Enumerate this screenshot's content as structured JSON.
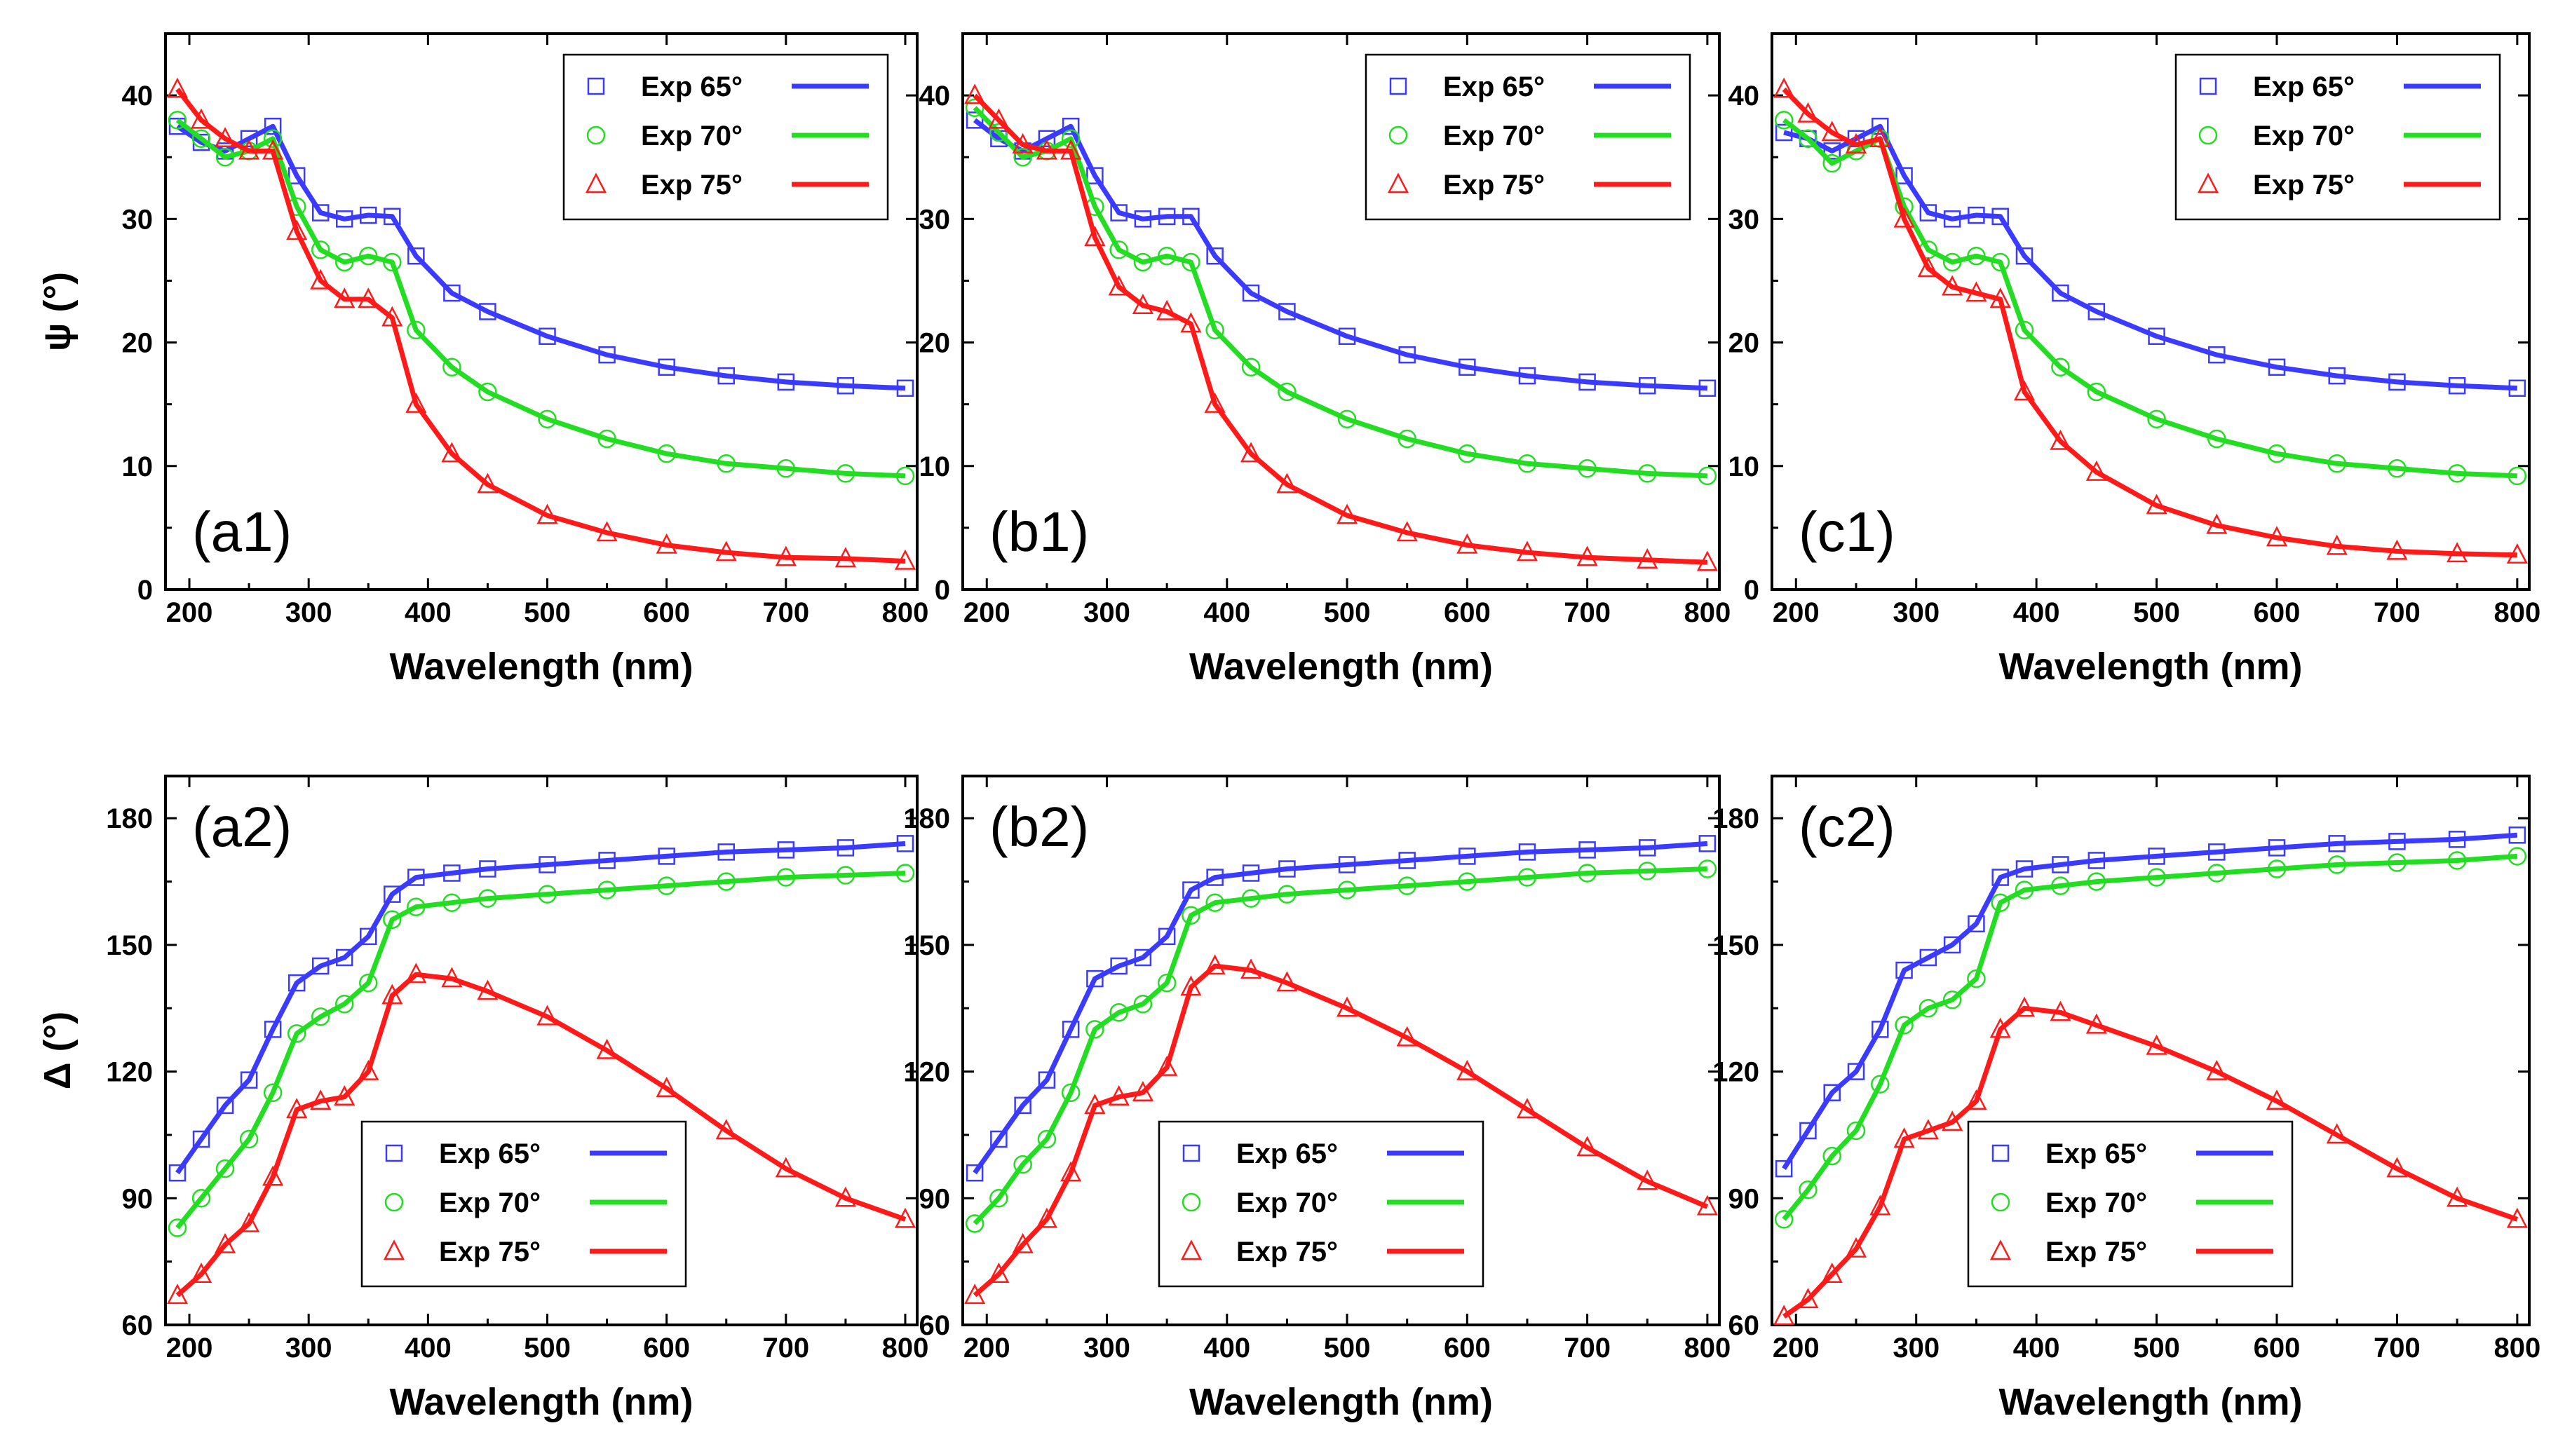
{
  "colors": {
    "exp65": "#3b3bff",
    "exp70": "#22dd22",
    "exp75": "#ff1a1a"
  },
  "chart_data": [
    {
      "type": "line",
      "panel": "(a1)",
      "xlabel": "Wavelength (nm)",
      "ylabel": "ψ (°)",
      "xlim": [
        180,
        810
      ],
      "ylim": [
        0,
        45
      ],
      "xticks": [
        200,
        300,
        400,
        500,
        600,
        700,
        800
      ],
      "yticks": [
        0,
        10,
        20,
        30,
        40
      ],
      "legend": {
        "position": "top-right",
        "entries": [
          "Exp 65°",
          "Exp 70°",
          "Exp 75°"
        ]
      },
      "series": [
        {
          "name": "Exp 65°",
          "markers": "square",
          "x": [
            190,
            210,
            230,
            250,
            270,
            290,
            310,
            330,
            350,
            370,
            390,
            420,
            450,
            500,
            550,
            600,
            650,
            700,
            750,
            800
          ],
          "y": [
            37.5,
            36.2,
            35.5,
            36.5,
            37.5,
            33.5,
            30.5,
            30.0,
            30.3,
            30.2,
            27,
            24,
            22.5,
            20.5,
            19,
            18,
            17.3,
            16.8,
            16.5,
            16.3
          ]
        },
        {
          "name": "Exp 70°",
          "markers": "circle",
          "x": [
            190,
            210,
            230,
            250,
            270,
            290,
            310,
            330,
            350,
            370,
            390,
            420,
            450,
            500,
            550,
            600,
            650,
            700,
            750,
            800
          ],
          "y": [
            38,
            36.5,
            35,
            35.5,
            36.5,
            31,
            27.5,
            26.5,
            27,
            26.5,
            21,
            18,
            16,
            13.8,
            12.2,
            11,
            10.2,
            9.8,
            9.4,
            9.2
          ]
        },
        {
          "name": "Exp 75°",
          "markers": "triangle",
          "x": [
            190,
            210,
            230,
            250,
            270,
            290,
            310,
            330,
            350,
            370,
            390,
            420,
            450,
            500,
            550,
            600,
            650,
            700,
            750,
            800
          ],
          "y": [
            40.5,
            38,
            36.5,
            35.5,
            35.5,
            29,
            25,
            23.5,
            23.5,
            22,
            15,
            11,
            8.5,
            6,
            4.6,
            3.6,
            3.0,
            2.6,
            2.5,
            2.3
          ]
        }
      ]
    },
    {
      "type": "line",
      "panel": "(b1)",
      "xlabel": "Wavelength (nm)",
      "ylabel": "",
      "xlim": [
        180,
        810
      ],
      "ylim": [
        0,
        45
      ],
      "xticks": [
        200,
        300,
        400,
        500,
        600,
        700,
        800
      ],
      "yticks": [
        0,
        10,
        20,
        30,
        40
      ],
      "legend": {
        "position": "top-right",
        "entries": [
          "Exp 65°",
          "Exp 70°",
          "Exp 75°"
        ]
      },
      "series": [
        {
          "name": "Exp 65°",
          "markers": "square",
          "x": [
            190,
            210,
            230,
            250,
            270,
            290,
            310,
            330,
            350,
            370,
            390,
            420,
            450,
            500,
            550,
            600,
            650,
            700,
            750,
            800
          ],
          "y": [
            38,
            36.5,
            35.5,
            36.5,
            37.5,
            33.5,
            30.5,
            30.0,
            30.2,
            30.2,
            27,
            24,
            22.5,
            20.5,
            19,
            18,
            17.3,
            16.8,
            16.5,
            16.3
          ]
        },
        {
          "name": "Exp 70°",
          "markers": "circle",
          "x": [
            190,
            210,
            230,
            250,
            270,
            290,
            310,
            330,
            350,
            370,
            390,
            420,
            450,
            500,
            550,
            600,
            650,
            700,
            750,
            800
          ],
          "y": [
            39,
            37,
            35,
            35.5,
            36.5,
            31,
            27.5,
            26.5,
            27,
            26.5,
            21,
            18,
            16,
            13.8,
            12.2,
            11,
            10.2,
            9.8,
            9.4,
            9.2
          ]
        },
        {
          "name": "Exp 75°",
          "markers": "triangle",
          "x": [
            190,
            210,
            230,
            250,
            270,
            290,
            310,
            330,
            350,
            370,
            390,
            420,
            450,
            500,
            550,
            600,
            650,
            700,
            750,
            800
          ],
          "y": [
            40,
            38,
            36,
            35.5,
            35.5,
            28.5,
            24.5,
            23,
            22.5,
            21.5,
            15,
            11,
            8.5,
            6,
            4.6,
            3.6,
            3.0,
            2.6,
            2.4,
            2.2
          ]
        }
      ]
    },
    {
      "type": "line",
      "panel": "(c1)",
      "xlabel": "Wavelength (nm)",
      "ylabel": "",
      "xlim": [
        180,
        810
      ],
      "ylim": [
        0,
        45
      ],
      "xticks": [
        200,
        300,
        400,
        500,
        600,
        700,
        800
      ],
      "yticks": [
        0,
        10,
        20,
        30,
        40
      ],
      "legend": {
        "position": "top-right",
        "entries": [
          "Exp 65°",
          "Exp 70°",
          "Exp 75°"
        ]
      },
      "series": [
        {
          "name": "Exp 65°",
          "markers": "square",
          "x": [
            190,
            210,
            230,
            250,
            270,
            290,
            310,
            330,
            350,
            370,
            390,
            420,
            450,
            500,
            550,
            600,
            650,
            700,
            750,
            800
          ],
          "y": [
            37,
            36.5,
            35.5,
            36.5,
            37.5,
            33.5,
            30.5,
            30.0,
            30.3,
            30.2,
            27,
            24,
            22.5,
            20.5,
            19,
            18,
            17.3,
            16.8,
            16.5,
            16.3
          ]
        },
        {
          "name": "Exp 70°",
          "markers": "circle",
          "x": [
            190,
            210,
            230,
            250,
            270,
            290,
            310,
            330,
            350,
            370,
            390,
            420,
            450,
            500,
            550,
            600,
            650,
            700,
            750,
            800
          ],
          "y": [
            38,
            36.5,
            34.5,
            35.5,
            36.5,
            31,
            27.5,
            26.5,
            27,
            26.5,
            21,
            18,
            16,
            13.8,
            12.2,
            11,
            10.2,
            9.8,
            9.4,
            9.2
          ]
        },
        {
          "name": "Exp 75°",
          "markers": "triangle",
          "x": [
            190,
            210,
            230,
            250,
            270,
            290,
            310,
            330,
            350,
            370,
            390,
            420,
            450,
            500,
            550,
            600,
            650,
            700,
            750,
            800
          ],
          "y": [
            40.5,
            38.5,
            37,
            36,
            36.5,
            30,
            26,
            24.5,
            24,
            23.5,
            16,
            12,
            9.5,
            6.8,
            5.2,
            4.2,
            3.5,
            3.1,
            2.9,
            2.8
          ]
        }
      ]
    },
    {
      "type": "line",
      "panel": "(a2)",
      "xlabel": "Wavelength (nm)",
      "ylabel": "Δ (°)",
      "xlim": [
        180,
        810
      ],
      "ylim": [
        60,
        190
      ],
      "xticks": [
        200,
        300,
        400,
        500,
        600,
        700,
        800
      ],
      "yticks": [
        60,
        90,
        120,
        150,
        180
      ],
      "legend": {
        "position": "bottom-center",
        "entries": [
          "Exp 65°",
          "Exp 70°",
          "Exp 75°"
        ]
      },
      "series": [
        {
          "name": "Exp 65°",
          "markers": "square",
          "x": [
            190,
            210,
            230,
            250,
            270,
            290,
            310,
            330,
            350,
            370,
            390,
            420,
            450,
            500,
            550,
            600,
            650,
            700,
            750,
            800
          ],
          "y": [
            96,
            104,
            112,
            118,
            130,
            141,
            145,
            147,
            152,
            162,
            166,
            167,
            168,
            169,
            170,
            171,
            172,
            172.5,
            173,
            174
          ]
        },
        {
          "name": "Exp 70°",
          "markers": "circle",
          "x": [
            190,
            210,
            230,
            250,
            270,
            290,
            310,
            330,
            350,
            370,
            390,
            420,
            450,
            500,
            550,
            600,
            650,
            700,
            750,
            800
          ],
          "y": [
            83,
            90,
            97,
            104,
            115,
            129,
            133,
            136,
            141,
            156,
            159,
            160,
            161,
            162,
            163,
            164,
            165,
            166,
            166.5,
            167
          ]
        },
        {
          "name": "Exp 75°",
          "markers": "triangle",
          "x": [
            190,
            210,
            230,
            250,
            270,
            290,
            310,
            330,
            350,
            370,
            390,
            420,
            450,
            500,
            550,
            600,
            650,
            700,
            750,
            800
          ],
          "y": [
            67,
            72,
            79,
            84,
            95,
            111,
            113,
            114,
            120,
            138,
            143,
            142,
            139,
            133,
            125,
            116,
            106,
            97,
            90,
            85
          ]
        }
      ]
    },
    {
      "type": "line",
      "panel": "(b2)",
      "xlabel": "Wavelength (nm)",
      "ylabel": "",
      "xlim": [
        180,
        810
      ],
      "ylim": [
        60,
        190
      ],
      "xticks": [
        200,
        300,
        400,
        500,
        600,
        700,
        800
      ],
      "yticks": [
        60,
        90,
        120,
        150,
        180
      ],
      "legend": {
        "position": "bottom-center",
        "entries": [
          "Exp 65°",
          "Exp 70°",
          "Exp 75°"
        ]
      },
      "series": [
        {
          "name": "Exp 65°",
          "markers": "square",
          "x": [
            190,
            210,
            230,
            250,
            270,
            290,
            310,
            330,
            350,
            370,
            390,
            420,
            450,
            500,
            550,
            600,
            650,
            700,
            750,
            800
          ],
          "y": [
            96,
            104,
            112,
            118,
            130,
            142,
            145,
            147,
            152,
            163,
            166,
            167,
            168,
            169,
            170,
            171,
            172,
            172.5,
            173,
            174
          ]
        },
        {
          "name": "Exp 70°",
          "markers": "circle",
          "x": [
            190,
            210,
            230,
            250,
            270,
            290,
            310,
            330,
            350,
            370,
            390,
            420,
            450,
            500,
            550,
            600,
            650,
            700,
            750,
            800
          ],
          "y": [
            84,
            90,
            98,
            104,
            115,
            130,
            134,
            136,
            141,
            157,
            160,
            161,
            162,
            163,
            164,
            165,
            166,
            167,
            167.5,
            168
          ]
        },
        {
          "name": "Exp 75°",
          "markers": "triangle",
          "x": [
            190,
            210,
            230,
            250,
            270,
            290,
            310,
            330,
            350,
            370,
            390,
            420,
            450,
            500,
            550,
            600,
            650,
            700,
            750,
            800
          ],
          "y": [
            67,
            72,
            79,
            85,
            96,
            112,
            114,
            115,
            121,
            140,
            145,
            144,
            141,
            135,
            128,
            120,
            111,
            102,
            94,
            88
          ]
        }
      ]
    },
    {
      "type": "line",
      "panel": "(c2)",
      "xlabel": "Wavelength (nm)",
      "ylabel": "",
      "xlim": [
        180,
        810
      ],
      "ylim": [
        60,
        190
      ],
      "xticks": [
        200,
        300,
        400,
        500,
        600,
        700,
        800
      ],
      "yticks": [
        60,
        90,
        120,
        150,
        180
      ],
      "legend": {
        "position": "bottom-center",
        "entries": [
          "Exp 65°",
          "Exp 70°",
          "Exp 75°"
        ]
      },
      "series": [
        {
          "name": "Exp 65°",
          "markers": "square",
          "x": [
            190,
            210,
            230,
            250,
            270,
            290,
            310,
            330,
            350,
            370,
            390,
            420,
            450,
            500,
            550,
            600,
            650,
            700,
            750,
            800
          ],
          "y": [
            97,
            106,
            115,
            120,
            130,
            144,
            147,
            150,
            155,
            166,
            168,
            169,
            170,
            171,
            172,
            173,
            174,
            174.5,
            175,
            176
          ]
        },
        {
          "name": "Exp 70°",
          "markers": "circle",
          "x": [
            190,
            210,
            230,
            250,
            270,
            290,
            310,
            330,
            350,
            370,
            390,
            420,
            450,
            500,
            550,
            600,
            650,
            700,
            750,
            800
          ],
          "y": [
            85,
            92,
            100,
            106,
            117,
            131,
            135,
            137,
            142,
            160,
            163,
            164,
            165,
            166,
            167,
            168,
            169,
            169.5,
            170,
            171
          ]
        },
        {
          "name": "Exp 75°",
          "markers": "triangle",
          "x": [
            190,
            210,
            230,
            250,
            270,
            290,
            310,
            330,
            350,
            370,
            390,
            420,
            450,
            500,
            550,
            600,
            650,
            700,
            750,
            800
          ],
          "y": [
            62,
            66,
            72,
            78,
            88,
            104,
            106,
            108,
            113,
            130,
            135,
            134,
            131,
            126,
            120,
            113,
            105,
            97,
            90,
            85
          ]
        }
      ]
    }
  ]
}
